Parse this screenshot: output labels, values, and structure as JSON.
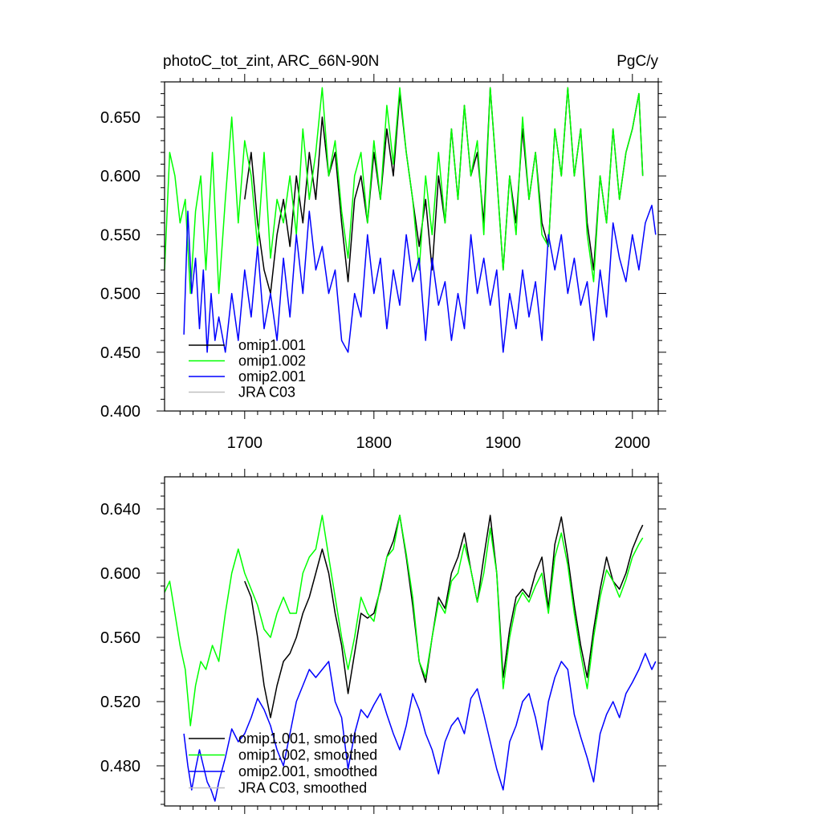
{
  "chart_data": [
    {
      "type": "line",
      "title": "photoC_tot_zint, ARC_66N-90N",
      "units": "PgC/y",
      "xlim": [
        1638,
        2020
      ],
      "ylim": [
        0.4,
        0.68
      ],
      "xticks": [
        1700,
        1800,
        1900,
        2000
      ],
      "xticklabels": [
        "1700",
        "1800",
        "1900",
        "2000"
      ],
      "yticks": [
        0.4,
        0.45,
        0.5,
        0.55,
        0.6,
        0.65
      ],
      "yticklabels": [
        "0.400",
        "0.450",
        "0.500",
        "0.550",
        "0.600",
        "0.650"
      ],
      "legend_position": "bottom-left",
      "series": [
        {
          "name": "omip1.001",
          "color": "#000000",
          "x": [
            1700,
            1705,
            1710,
            1715,
            1720,
            1725,
            1730,
            1735,
            1740,
            1745,
            1750,
            1755,
            1760,
            1765,
            1770,
            1775,
            1780,
            1785,
            1790,
            1795,
            1800,
            1805,
            1810,
            1815,
            1820,
            1825,
            1830,
            1835,
            1840,
            1845,
            1850,
            1855,
            1860,
            1865,
            1870,
            1875,
            1880,
            1885,
            1890,
            1895,
            1900,
            1905,
            1910,
            1915,
            1920,
            1925,
            1930,
            1935,
            1940,
            1945,
            1950,
            1955,
            1960,
            1965,
            1970,
            1975,
            1980,
            1985,
            1990,
            1995,
            2000,
            2005,
            2008
          ],
          "values": [
            0.58,
            0.62,
            0.56,
            0.52,
            0.5,
            0.55,
            0.58,
            0.54,
            0.6,
            0.56,
            0.62,
            0.58,
            0.65,
            0.6,
            0.62,
            0.56,
            0.51,
            0.58,
            0.6,
            0.56,
            0.62,
            0.58,
            0.64,
            0.6,
            0.67,
            0.62,
            0.58,
            0.54,
            0.58,
            0.52,
            0.6,
            0.56,
            0.64,
            0.58,
            0.66,
            0.6,
            0.62,
            0.56,
            0.675,
            0.6,
            0.52,
            0.6,
            0.56,
            0.64,
            0.58,
            0.62,
            0.56,
            0.54,
            0.64,
            0.6,
            0.675,
            0.6,
            0.64,
            0.56,
            0.52,
            0.6,
            0.56,
            0.64,
            0.58,
            0.62,
            0.64,
            0.67,
            0.6
          ]
        },
        {
          "name": "omip1.002",
          "color": "#00ff00",
          "x": [
            1638,
            1642,
            1646,
            1650,
            1654,
            1658,
            1662,
            1666,
            1670,
            1675,
            1680,
            1685,
            1690,
            1695,
            1700,
            1705,
            1710,
            1715,
            1720,
            1725,
            1730,
            1735,
            1740,
            1745,
            1750,
            1755,
            1760,
            1765,
            1770,
            1775,
            1780,
            1785,
            1790,
            1795,
            1800,
            1805,
            1810,
            1815,
            1820,
            1825,
            1830,
            1835,
            1840,
            1845,
            1850,
            1855,
            1860,
            1865,
            1870,
            1875,
            1880,
            1885,
            1890,
            1895,
            1900,
            1905,
            1910,
            1915,
            1920,
            1925,
            1930,
            1935,
            1940,
            1945,
            1950,
            1955,
            1960,
            1965,
            1970,
            1975,
            1980,
            1985,
            1990,
            1995,
            2000,
            2005,
            2008
          ],
          "values": [
            0.52,
            0.62,
            0.6,
            0.56,
            0.58,
            0.5,
            0.57,
            0.6,
            0.52,
            0.62,
            0.5,
            0.58,
            0.65,
            0.56,
            0.63,
            0.6,
            0.54,
            0.62,
            0.53,
            0.58,
            0.56,
            0.6,
            0.55,
            0.64,
            0.58,
            0.62,
            0.675,
            0.6,
            0.63,
            0.57,
            0.53,
            0.6,
            0.62,
            0.56,
            0.63,
            0.58,
            0.66,
            0.61,
            0.675,
            0.62,
            0.58,
            0.52,
            0.6,
            0.55,
            0.62,
            0.56,
            0.64,
            0.58,
            0.66,
            0.6,
            0.63,
            0.55,
            0.675,
            0.6,
            0.52,
            0.6,
            0.55,
            0.65,
            0.58,
            0.62,
            0.55,
            0.54,
            0.64,
            0.6,
            0.675,
            0.6,
            0.64,
            0.55,
            0.51,
            0.6,
            0.56,
            0.64,
            0.58,
            0.62,
            0.64,
            0.67,
            0.6
          ]
        },
        {
          "name": "omip2.001",
          "color": "#0000ff",
          "x": [
            1653,
            1656,
            1659,
            1662,
            1665,
            1668,
            1671,
            1674,
            1677,
            1680,
            1685,
            1690,
            1695,
            1700,
            1705,
            1710,
            1715,
            1720,
            1725,
            1730,
            1735,
            1740,
            1745,
            1750,
            1755,
            1760,
            1765,
            1770,
            1775,
            1780,
            1785,
            1790,
            1795,
            1800,
            1805,
            1810,
            1815,
            1820,
            1825,
            1830,
            1835,
            1840,
            1845,
            1850,
            1855,
            1860,
            1865,
            1870,
            1875,
            1880,
            1885,
            1890,
            1895,
            1900,
            1905,
            1910,
            1915,
            1920,
            1925,
            1930,
            1935,
            1940,
            1945,
            1950,
            1955,
            1960,
            1965,
            1970,
            1975,
            1980,
            1985,
            1990,
            1995,
            2000,
            2005,
            2010,
            2015,
            2018
          ],
          "values": [
            0.465,
            0.57,
            0.5,
            0.53,
            0.47,
            0.52,
            0.45,
            0.5,
            0.46,
            0.48,
            0.45,
            0.5,
            0.46,
            0.52,
            0.48,
            0.54,
            0.47,
            0.5,
            0.46,
            0.53,
            0.48,
            0.55,
            0.5,
            0.57,
            0.52,
            0.54,
            0.5,
            0.52,
            0.46,
            0.45,
            0.5,
            0.48,
            0.55,
            0.5,
            0.53,
            0.47,
            0.52,
            0.49,
            0.55,
            0.51,
            0.53,
            0.46,
            0.53,
            0.49,
            0.51,
            0.46,
            0.5,
            0.47,
            0.55,
            0.5,
            0.53,
            0.49,
            0.52,
            0.45,
            0.5,
            0.47,
            0.52,
            0.48,
            0.51,
            0.46,
            0.55,
            0.52,
            0.55,
            0.5,
            0.53,
            0.49,
            0.51,
            0.46,
            0.52,
            0.48,
            0.56,
            0.53,
            0.51,
            0.55,
            0.52,
            0.56,
            0.575,
            0.55
          ]
        },
        {
          "name": "JRA C03",
          "color": "#c0c0c0",
          "x": [],
          "values": []
        }
      ]
    },
    {
      "type": "line",
      "title": "",
      "xlim": [
        1638,
        2020
      ],
      "ylim": [
        0.455,
        0.66
      ],
      "xticks": [
        1700,
        1800,
        1900,
        2000
      ],
      "xticklabels": [],
      "yticks": [
        0.48,
        0.52,
        0.56,
        0.6,
        0.64
      ],
      "yticklabels": [
        "0.480",
        "0.520",
        "0.560",
        "0.600",
        "0.640"
      ],
      "legend_position": "bottom-left",
      "series": [
        {
          "name": "omip1.001, smoothed",
          "color": "#000000",
          "x": [
            1700,
            1705,
            1710,
            1715,
            1720,
            1725,
            1730,
            1735,
            1740,
            1745,
            1750,
            1755,
            1760,
            1765,
            1770,
            1775,
            1780,
            1785,
            1790,
            1795,
            1800,
            1805,
            1810,
            1815,
            1820,
            1825,
            1830,
            1835,
            1840,
            1845,
            1850,
            1855,
            1860,
            1865,
            1870,
            1875,
            1880,
            1885,
            1890,
            1895,
            1900,
            1905,
            1910,
            1915,
            1920,
            1925,
            1930,
            1935,
            1940,
            1945,
            1950,
            1955,
            1960,
            1965,
            1970,
            1975,
            1980,
            1985,
            1990,
            1995,
            2000,
            2005,
            2008
          ],
          "values": [
            0.595,
            0.585,
            0.56,
            0.53,
            0.51,
            0.53,
            0.545,
            0.55,
            0.56,
            0.575,
            0.585,
            0.6,
            0.615,
            0.6,
            0.575,
            0.555,
            0.525,
            0.55,
            0.575,
            0.572,
            0.575,
            0.59,
            0.61,
            0.62,
            0.636,
            0.61,
            0.58,
            0.545,
            0.532,
            0.56,
            0.585,
            0.578,
            0.6,
            0.61,
            0.625,
            0.602,
            0.582,
            0.61,
            0.636,
            0.6,
            0.535,
            0.565,
            0.585,
            0.59,
            0.585,
            0.6,
            0.61,
            0.578,
            0.618,
            0.635,
            0.61,
            0.58,
            0.555,
            0.535,
            0.565,
            0.59,
            0.61,
            0.595,
            0.59,
            0.6,
            0.615,
            0.625,
            0.63
          ]
        },
        {
          "name": "omip1.002, smoothed",
          "color": "#00ff00",
          "x": [
            1638,
            1642,
            1646,
            1650,
            1654,
            1658,
            1662,
            1666,
            1670,
            1675,
            1680,
            1685,
            1690,
            1695,
            1700,
            1705,
            1710,
            1715,
            1720,
            1725,
            1730,
            1735,
            1740,
            1745,
            1750,
            1755,
            1760,
            1765,
            1770,
            1775,
            1780,
            1785,
            1790,
            1795,
            1800,
            1805,
            1810,
            1815,
            1820,
            1825,
            1830,
            1835,
            1840,
            1845,
            1850,
            1855,
            1860,
            1865,
            1870,
            1875,
            1880,
            1885,
            1890,
            1895,
            1900,
            1905,
            1910,
            1915,
            1920,
            1925,
            1930,
            1935,
            1940,
            1945,
            1950,
            1955,
            1960,
            1965,
            1970,
            1975,
            1980,
            1985,
            1990,
            1995,
            2000,
            2005,
            2008
          ],
          "values": [
            0.588,
            0.595,
            0.575,
            0.555,
            0.54,
            0.505,
            0.53,
            0.545,
            0.54,
            0.555,
            0.545,
            0.575,
            0.6,
            0.615,
            0.6,
            0.59,
            0.58,
            0.565,
            0.56,
            0.575,
            0.585,
            0.575,
            0.575,
            0.6,
            0.61,
            0.615,
            0.636,
            0.61,
            0.585,
            0.56,
            0.54,
            0.56,
            0.585,
            0.575,
            0.57,
            0.592,
            0.61,
            0.615,
            0.636,
            0.612,
            0.585,
            0.545,
            0.535,
            0.56,
            0.582,
            0.575,
            0.595,
            0.6,
            0.618,
            0.602,
            0.582,
            0.6,
            0.628,
            0.6,
            0.528,
            0.56,
            0.58,
            0.588,
            0.582,
            0.592,
            0.6,
            0.575,
            0.61,
            0.625,
            0.605,
            0.575,
            0.55,
            0.528,
            0.56,
            0.585,
            0.602,
            0.595,
            0.585,
            0.596,
            0.61,
            0.618,
            0.622
          ]
        },
        {
          "name": "omip2.001, smoothed",
          "color": "#0000ff",
          "x": [
            1653,
            1656,
            1659,
            1662,
            1665,
            1668,
            1671,
            1674,
            1677,
            1680,
            1685,
            1690,
            1695,
            1700,
            1705,
            1710,
            1715,
            1720,
            1725,
            1730,
            1735,
            1740,
            1745,
            1750,
            1755,
            1760,
            1765,
            1770,
            1775,
            1780,
            1785,
            1790,
            1795,
            1800,
            1805,
            1810,
            1815,
            1820,
            1825,
            1830,
            1835,
            1840,
            1845,
            1850,
            1855,
            1860,
            1865,
            1870,
            1875,
            1880,
            1885,
            1890,
            1895,
            1900,
            1905,
            1910,
            1915,
            1920,
            1925,
            1930,
            1935,
            1940,
            1945,
            1950,
            1955,
            1960,
            1965,
            1970,
            1975,
            1980,
            1985,
            1990,
            1995,
            2000,
            2005,
            2010,
            2015,
            2018
          ],
          "values": [
            0.5,
            0.48,
            0.465,
            0.478,
            0.49,
            0.48,
            0.47,
            0.465,
            0.458,
            0.47,
            0.485,
            0.503,
            0.495,
            0.5,
            0.51,
            0.522,
            0.515,
            0.505,
            0.49,
            0.48,
            0.5,
            0.52,
            0.53,
            0.54,
            0.535,
            0.54,
            0.545,
            0.52,
            0.51,
            0.478,
            0.5,
            0.515,
            0.51,
            0.518,
            0.525,
            0.512,
            0.5,
            0.49,
            0.505,
            0.525,
            0.515,
            0.5,
            0.49,
            0.475,
            0.495,
            0.505,
            0.51,
            0.5,
            0.522,
            0.528,
            0.512,
            0.495,
            0.478,
            0.465,
            0.495,
            0.505,
            0.52,
            0.525,
            0.51,
            0.49,
            0.52,
            0.535,
            0.545,
            0.54,
            0.512,
            0.498,
            0.485,
            0.47,
            0.5,
            0.512,
            0.52,
            0.51,
            0.525,
            0.532,
            0.54,
            0.55,
            0.54,
            0.545
          ]
        },
        {
          "name": "JRA C03, smoothed",
          "color": "#c0c0c0",
          "x": [],
          "values": []
        }
      ]
    }
  ]
}
